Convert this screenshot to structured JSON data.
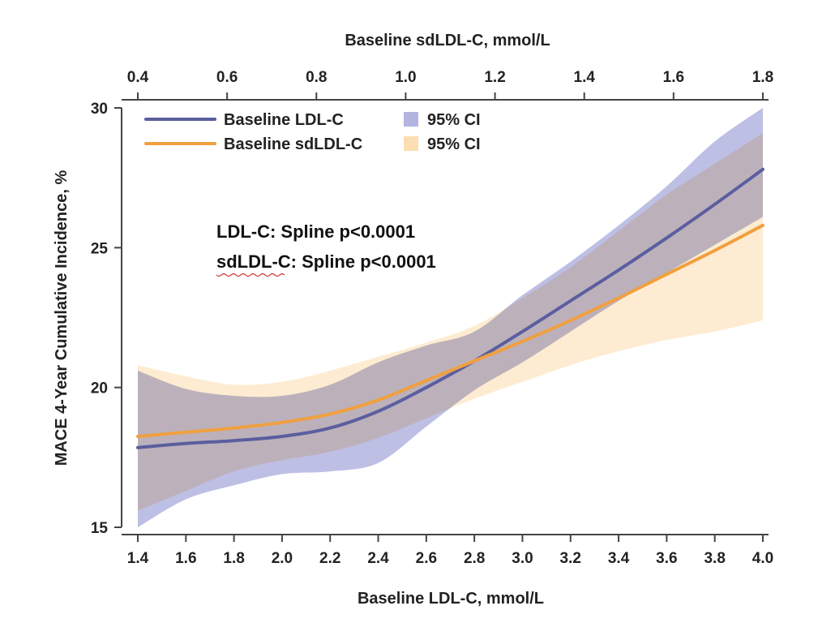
{
  "chart_data": {
    "type": "line",
    "title": "",
    "xlabel": "Baseline LDL-C, mmol/L",
    "x2label": "Baseline sdLDL-C, mmol/L",
    "ylabel": "MACE 4-Year Cumulative Incidence, %",
    "xlim": [
      1.4,
      4.0
    ],
    "x2lim": [
      0.4,
      1.8
    ],
    "ylim": [
      15,
      30
    ],
    "x_ticks": [
      "1.4",
      "1.6",
      "1.8",
      "2.0",
      "2.2",
      "2.4",
      "2.6",
      "2.8",
      "3.0",
      "3.2",
      "3.4",
      "3.6",
      "3.8",
      "4.0"
    ],
    "x2_ticks": [
      "0.4",
      "0.6",
      "0.8",
      "1.0",
      "1.2",
      "1.4",
      "1.6",
      "1.8"
    ],
    "y_ticks": [
      "15",
      "20",
      "25",
      "30"
    ],
    "grid": false,
    "legend_position": "top-left",
    "x": [
      1.4,
      1.6,
      1.8,
      2.0,
      2.2,
      2.4,
      2.6,
      2.8,
      3.0,
      3.2,
      3.4,
      3.6,
      3.8,
      4.0
    ],
    "series": [
      {
        "name": "Baseline LDL-C",
        "color": "#5b5e9e",
        "values": [
          17.85,
          18.0,
          18.1,
          18.25,
          18.55,
          19.15,
          20.0,
          20.95,
          22.0,
          23.1,
          24.2,
          25.35,
          26.55,
          27.8
        ],
        "ci_lower": [
          15.0,
          16.0,
          16.5,
          16.9,
          17.0,
          17.3,
          18.6,
          19.9,
          20.9,
          22.0,
          23.1,
          24.1,
          25.1,
          26.1
        ],
        "ci_upper": [
          20.6,
          19.95,
          19.7,
          19.7,
          20.1,
          20.9,
          21.5,
          22.0,
          23.3,
          24.5,
          25.8,
          27.2,
          28.8,
          30.5
        ],
        "ci_color": "#b3b4e0",
        "ci_label": "95% CI"
      },
      {
        "name": "Baseline sdLDL-C",
        "color": "#f0a040",
        "values": [
          18.25,
          18.4,
          18.55,
          18.75,
          19.05,
          19.55,
          20.25,
          20.95,
          21.65,
          22.4,
          23.2,
          24.05,
          24.9,
          25.8
        ],
        "ci_lower": [
          15.6,
          16.3,
          17.0,
          17.4,
          17.7,
          18.2,
          18.9,
          19.6,
          20.2,
          20.8,
          21.3,
          21.7,
          22.0,
          22.4
        ],
        "ci_upper": [
          20.8,
          20.4,
          20.1,
          20.2,
          20.6,
          21.1,
          21.6,
          22.2,
          23.2,
          24.3,
          25.6,
          26.9,
          28.0,
          29.1
        ],
        "ci_color": "#fbdfb3",
        "ci_label": "95% CI"
      }
    ],
    "annotations": [
      "LDL-C: Spline p<0.0001",
      "sdLDL-C: Spline p<0.0001"
    ]
  }
}
